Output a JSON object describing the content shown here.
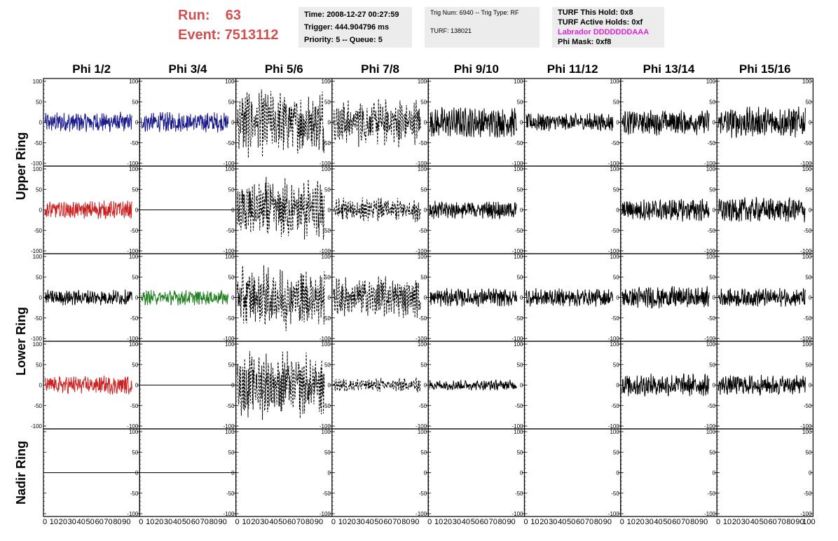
{
  "header": {
    "run_label": "Run:",
    "run_value": "63",
    "event_label": "Event:",
    "event_value": "7513112",
    "time": "Time: 2008-12-27 00:27:59",
    "trigger": "Trigger: 444.904796 ms",
    "priority": "Priority: 5 -- Queue: 5",
    "trig_num": "Trig Num: 6940 -- Trig Type: RF",
    "turf": "TURF: 138021",
    "turf_this_hold": "TURF This Hold: 0x8",
    "turf_active_holds": "TURF Active Holds: 0xf",
    "labrador": "Labrador DDDDDDDAAA",
    "phi_mask": "Phi Mask: 0xf8"
  },
  "colors": {
    "header_red": "#d05050",
    "labrador_magenta": "#e020e0",
    "trace_blue": "#1a1a8c",
    "trace_red": "#cc2020",
    "trace_green": "#208020",
    "trace_black": "#000000",
    "header_box_bg": "#ececec"
  },
  "chart_data": {
    "type": "line",
    "columns": [
      "Phi 1/2",
      "Phi 3/4",
      "Phi 5/6",
      "Phi 7/8",
      "Phi 9/10",
      "Phi 11/12",
      "Phi 13/14",
      "Phi 15/16"
    ],
    "row_labels": [
      "Upper Ring",
      "Lower Ring",
      "Nadir Ring"
    ],
    "ylim": [
      -100,
      100
    ],
    "xlim": [
      0,
      100
    ],
    "y_ticks": [
      "100",
      "50",
      "0",
      "-50",
      "-100"
    ],
    "x_ticks": [
      "0",
      "10",
      "20",
      "30",
      "40",
      "50",
      "60",
      "70",
      "80",
      "90",
      "100"
    ],
    "grid": false,
    "rows_per_panel": 5,
    "panels": [
      [
        {
          "style": "solid",
          "color": "blue",
          "amplitude": 20
        },
        {
          "style": "solid",
          "color": "blue",
          "amplitude": 20
        },
        {
          "style": "dashed",
          "color": "black",
          "amplitude": 70
        },
        {
          "style": "dashed",
          "color": "black",
          "amplitude": 50
        },
        {
          "style": "solid",
          "color": "black",
          "amplitude": 30
        },
        {
          "style": "solid",
          "color": "black",
          "amplitude": 18
        },
        {
          "style": "solid",
          "color": "black",
          "amplitude": 25
        },
        {
          "style": "solid",
          "color": "black",
          "amplitude": 30
        }
      ],
      [
        {
          "style": "solid",
          "color": "red",
          "amplitude": 18
        },
        {
          "style": "flat",
          "color": "black",
          "amplitude": 0
        },
        {
          "style": "dashed",
          "color": "black",
          "amplitude": 65
        },
        {
          "style": "dashed",
          "color": "black",
          "amplitude": 25
        },
        {
          "style": "solid",
          "color": "black",
          "amplitude": 18
        },
        {
          "style": "none",
          "color": "black",
          "amplitude": 0
        },
        {
          "style": "solid",
          "color": "black",
          "amplitude": 22
        },
        {
          "style": "solid",
          "color": "black",
          "amplitude": 25
        }
      ],
      [
        {
          "style": "solid",
          "color": "black",
          "amplitude": 15
        },
        {
          "style": "solid",
          "color": "green",
          "amplitude": 15
        },
        {
          "style": "dashed",
          "color": "black",
          "amplitude": 65
        },
        {
          "style": "dashed",
          "color": "black",
          "amplitude": 45
        },
        {
          "style": "solid",
          "color": "black",
          "amplitude": 18
        },
        {
          "style": "solid",
          "color": "black",
          "amplitude": 18
        },
        {
          "style": "solid",
          "color": "black",
          "amplitude": 22
        },
        {
          "style": "solid",
          "color": "black",
          "amplitude": 18
        }
      ],
      [
        {
          "style": "solid",
          "color": "red",
          "amplitude": 18
        },
        {
          "style": "flat",
          "color": "black",
          "amplitude": 0
        },
        {
          "style": "dashed",
          "color": "black",
          "amplitude": 70
        },
        {
          "style": "dashed",
          "color": "black",
          "amplitude": 15
        },
        {
          "style": "solid",
          "color": "black",
          "amplitude": 10
        },
        {
          "style": "none",
          "color": "black",
          "amplitude": 0
        },
        {
          "style": "solid",
          "color": "black",
          "amplitude": 22
        },
        {
          "style": "solid",
          "color": "black",
          "amplitude": 20
        }
      ],
      [
        {
          "style": "flat",
          "color": "black",
          "amplitude": 0
        },
        {
          "style": "flat",
          "color": "black",
          "amplitude": 0
        },
        {
          "style": "none",
          "color": "black",
          "amplitude": 0
        },
        {
          "style": "none",
          "color": "black",
          "amplitude": 0
        },
        {
          "style": "none",
          "color": "black",
          "amplitude": 0
        },
        {
          "style": "none",
          "color": "black",
          "amplitude": 0
        },
        {
          "style": "none",
          "color": "black",
          "amplitude": 0
        },
        {
          "style": "none",
          "color": "black",
          "amplitude": 0
        }
      ]
    ]
  }
}
